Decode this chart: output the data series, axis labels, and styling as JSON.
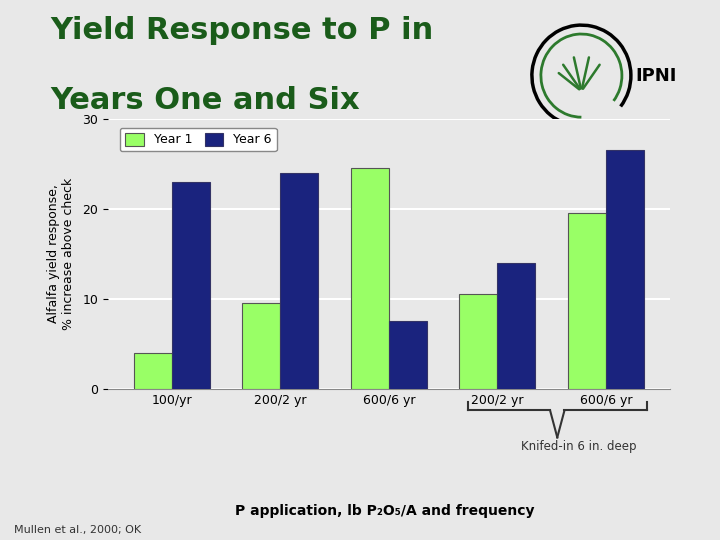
{
  "title_line1": "Yield Response to P in",
  "title_line2": "Years One and Six",
  "title_color": "#1a5c1a",
  "ylabel": "Alfalfa yield response,\n% increase above check",
  "xlabel": "P application, lb P₂O₅/A and frequency",
  "categories": [
    "100/yr",
    "200/2 yr",
    "600/6 yr",
    "200/2 yr",
    "600/6 yr"
  ],
  "year1_values": [
    4.0,
    9.5,
    24.5,
    10.5,
    19.5
  ],
  "year6_values": [
    23.0,
    24.0,
    7.5,
    14.0,
    26.5
  ],
  "year1_color": "#99FF66",
  "year6_color": "#1a237e",
  "ylim": [
    0,
    30
  ],
  "yticks": [
    0,
    10,
    20,
    30
  ],
  "bg_color": "#e8e8e8",
  "chart_bg": "#e8e8e8",
  "grid_color": "#ffffff",
  "bar_width": 0.35,
  "legend_labels": [
    "Year 1",
    "Year 6"
  ],
  "knifed_label": "Knifed-in 6 in. deep",
  "footnote": "Mullen et al., 2000; OK",
  "title_fontsize": 22,
  "axis_fontsize": 9,
  "tick_fontsize": 9
}
